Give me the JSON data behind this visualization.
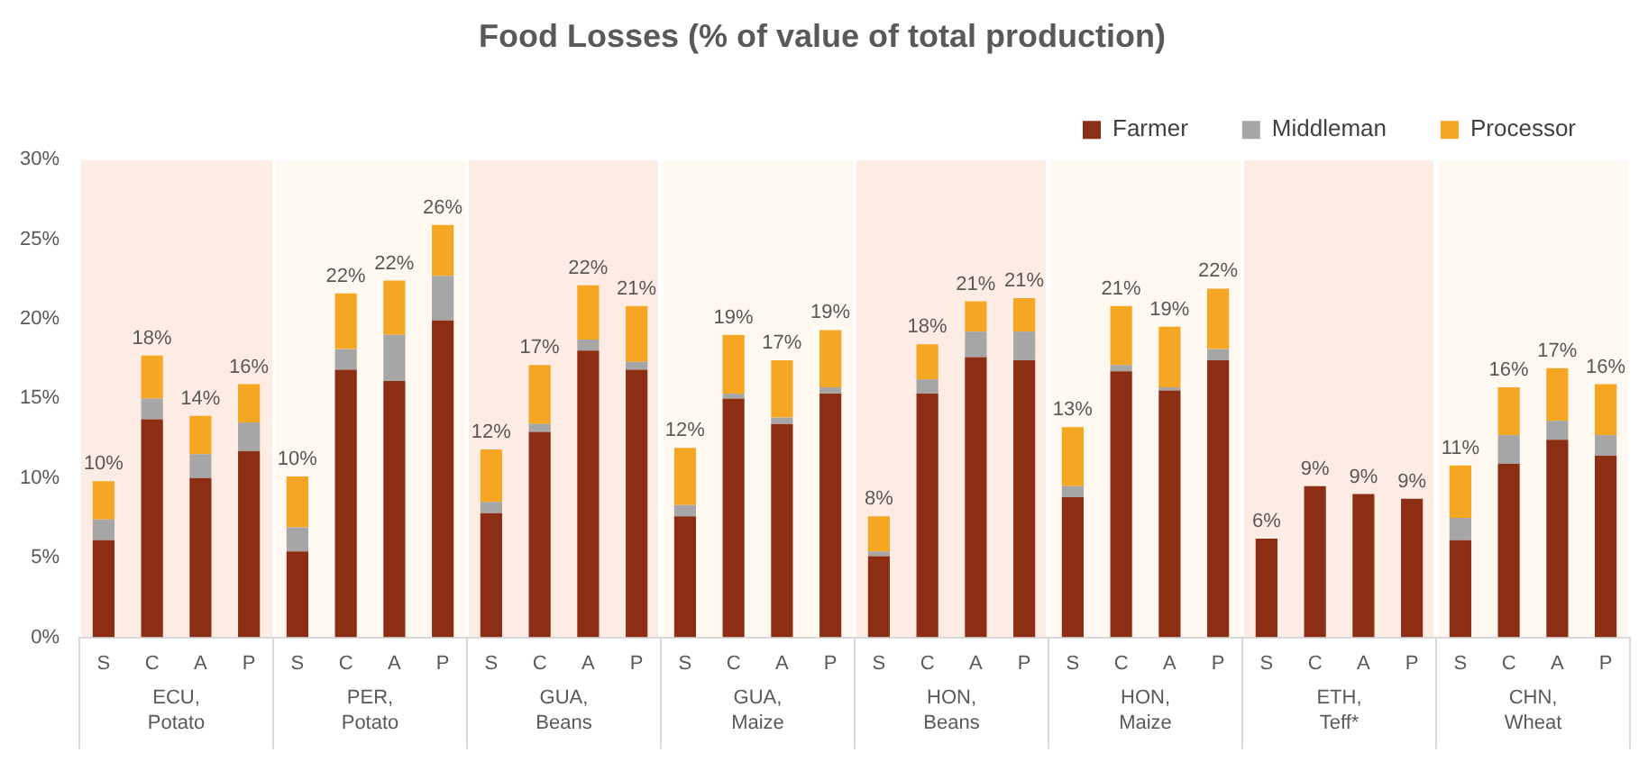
{
  "chart_data": {
    "type": "bar",
    "stacked": true,
    "title": "Food Losses (% of value of total production)",
    "categories": [
      "S",
      "C",
      "A",
      "P",
      "S",
      "C",
      "A",
      "P",
      "S",
      "C",
      "A",
      "P",
      "S",
      "C",
      "A",
      "P",
      "S",
      "C",
      "A",
      "P",
      "S",
      "C",
      "A",
      "P",
      "S",
      "C",
      "A",
      "P",
      "S",
      "C",
      "A",
      "P"
    ],
    "series": [
      {
        "name": "Farmer",
        "color": "#8b2e14",
        "values": [
          6.1,
          13.7,
          10.0,
          11.7,
          5.4,
          16.8,
          16.1,
          19.9,
          7.8,
          12.9,
          18.0,
          16.8,
          7.6,
          15.0,
          13.4,
          15.3,
          5.1,
          15.3,
          17.6,
          17.4,
          8.8,
          16.7,
          15.5,
          17.4,
          6.2,
          9.5,
          9.0,
          8.7,
          6.1,
          10.9,
          12.4,
          11.4
        ]
      },
      {
        "name": "Middleman",
        "color": "#a6a6a6",
        "values": [
          1.3,
          1.3,
          1.5,
          1.8,
          1.5,
          1.3,
          2.9,
          2.8,
          0.7,
          0.5,
          0.7,
          0.5,
          0.7,
          0.3,
          0.4,
          0.4,
          0.3,
          0.9,
          1.6,
          1.8,
          0.7,
          0.4,
          0.2,
          0.7,
          0,
          0,
          0,
          0,
          1.4,
          1.8,
          1.2,
          1.3
        ]
      },
      {
        "name": "Processor",
        "color": "#f5a623",
        "values": [
          2.4,
          2.7,
          2.4,
          2.4,
          3.2,
          3.5,
          3.4,
          3.2,
          3.3,
          3.7,
          3.4,
          3.5,
          3.6,
          3.7,
          3.6,
          3.6,
          2.2,
          2.2,
          1.9,
          2.1,
          3.7,
          3.7,
          3.8,
          3.8,
          0,
          0,
          0,
          0,
          3.3,
          3.0,
          3.3,
          3.2
        ]
      }
    ],
    "ylim": [
      0,
      30
    ],
    "yticks": [
      {
        "value": 0,
        "label": "0%"
      },
      {
        "value": 5,
        "label": "5%"
      },
      {
        "value": 10,
        "label": "10%"
      },
      {
        "value": 15,
        "label": "15%"
      },
      {
        "value": 20,
        "label": "20%"
      },
      {
        "value": 25,
        "label": "25%"
      },
      {
        "value": 30,
        "label": "30%"
      }
    ],
    "totals": [
      "10%",
      "18%",
      "14%",
      "16%",
      "10%",
      "22%",
      "22%",
      "26%",
      "12%",
      "17%",
      "22%",
      "21%",
      "12%",
      "19%",
      "17%",
      "19%",
      "8%",
      "18%",
      "21%",
      "21%",
      "13%",
      "21%",
      "19%",
      "22%",
      "6%",
      "9%",
      "9%",
      "9%",
      "11%",
      "16%",
      "17%",
      "16%"
    ],
    "annotations": [
      "ECU, Potato",
      "PER, Potato",
      "GUA, Beans",
      "GUA, Maize",
      "HON, Beans",
      "HON, Maize",
      "ETH, Teff*",
      "CHN, Wheat"
    ],
    "grid": false,
    "legend": "top right"
  }
}
